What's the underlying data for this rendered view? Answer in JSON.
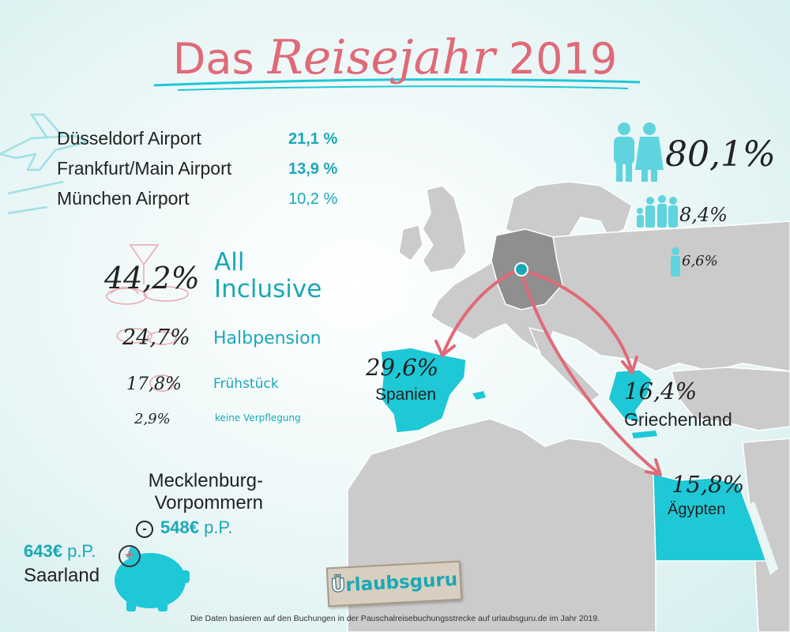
{
  "title": {
    "part1": "Das",
    "part2": "Reisejahr",
    "part3": "2019"
  },
  "airports": [
    {
      "name": "Düsseldorf Airport",
      "pct": "21,1 %"
    },
    {
      "name": "Frankfurt/Main Airport",
      "pct": "13,9 %"
    },
    {
      "name": "München Airport",
      "pct": "10,2 %"
    }
  ],
  "travelers": [
    {
      "pct": "80,1%",
      "icon": "couple-icon"
    },
    {
      "pct": "8,4%",
      "icon": "family-icon"
    },
    {
      "pct": "6,6%",
      "icon": "single-person-icon"
    }
  ],
  "boarding": [
    {
      "pct": "44,2%",
      "label_line1": "All",
      "label_line2": "Inclusive"
    },
    {
      "pct": "24,7%",
      "label": "Halbpension"
    },
    {
      "pct": "17,8%",
      "label": "Frühstück"
    },
    {
      "pct": "2,9%",
      "label": "keine Verpflegung"
    }
  ],
  "destinations": [
    {
      "pct": "29,6%",
      "name": "Spanien"
    },
    {
      "pct": "16,4%",
      "name": "Griechenland"
    },
    {
      "pct": "15,8%",
      "name": "Ägypten"
    }
  ],
  "budget": {
    "min_region_line1": "Mecklenburg-",
    "min_region_line2": "Vorpommern",
    "min_sign": "-",
    "min_amount": "548€",
    "min_unit": "p.P.",
    "max_sign": "+",
    "max_amount": "643€",
    "max_unit": "p.P.",
    "max_region": "Saarland"
  },
  "logo": {
    "u": "Ü",
    "rest": "rlaubsguru"
  },
  "footer": "Die Daten basieren auf den Buchungen in der Pauschalreisebuchungsstrecke auf urlaubsguru.de im Jahr 2019.",
  "colors": {
    "accent": "#e06a78",
    "turquoise": "#1ec8d6",
    "land": "#c9c9c9",
    "germany": "#8f8f8f"
  }
}
